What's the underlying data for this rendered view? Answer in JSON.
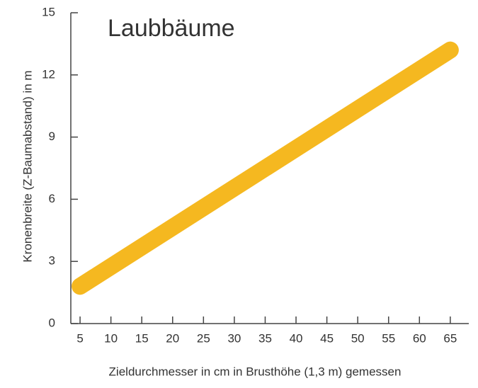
{
  "chart_data": {
    "type": "line",
    "title": "Laubbäume",
    "x_label": "Zieldurchmesser in cm in Brusthöhe (1,3 m) gemessen",
    "y_label": "Kronenbreite (Z-Baumabstand) in m",
    "x": [
      5,
      65
    ],
    "series": [
      {
        "name": "Laubbäume",
        "color": "#f5b820",
        "values": [
          1.8,
          13.2
        ]
      }
    ],
    "xlim": [
      3.5,
      68
    ],
    "xticks": [
      5,
      10,
      15,
      20,
      25,
      30,
      35,
      40,
      45,
      50,
      55,
      60,
      65
    ],
    "ylim": [
      0,
      15
    ],
    "yticks": [
      0,
      3,
      6,
      9,
      12,
      15
    ]
  }
}
